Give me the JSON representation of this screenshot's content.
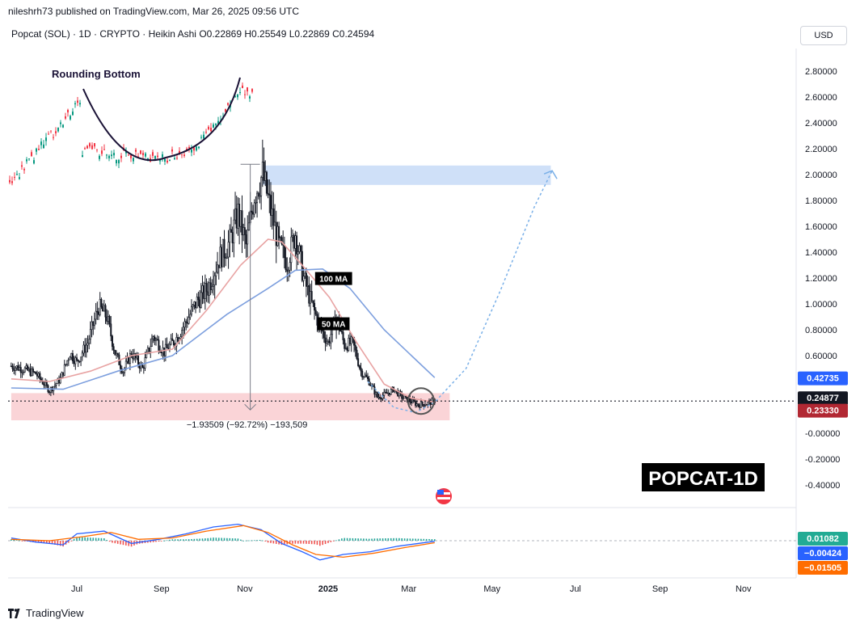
{
  "header": {
    "credit": "nileshrh73 published on TradingView.com, Mar 26, 2025 09:56 UTC",
    "symbol": "Popcat (SOL) · 1D · CRYPTO · Heikin Ashi",
    "ohlc": "O0.22869 H0.25549 L0.22869 C0.24594",
    "currency": "USD"
  },
  "footer": {
    "brand": "TradingView"
  },
  "colors": {
    "up": "#089981",
    "down": "#f23645",
    "candle": "#131722",
    "ma50": "#e8a3a3",
    "ma100": "#7d9fde",
    "zone_blue": "#bbd3f5",
    "zone_red": "#f8c6c9",
    "macd": "#2962ff",
    "signal": "#ff6d00"
  },
  "chart_data": {
    "type": "line",
    "style": "Heikin Ashi candlestick price chart with moving averages and MACD",
    "price_axis": {
      "ticks": [
        "2.80000",
        "2.60000",
        "2.40000",
        "2.20000",
        "2.00000",
        "1.80000",
        "1.60000",
        "1.40000",
        "1.20000",
        "1.00000",
        "0.80000",
        "0.60000",
        "-0.00000",
        "-0.20000",
        "-0.40000"
      ],
      "tick_values": [
        2.8,
        2.6,
        2.4,
        2.2,
        2.0,
        1.8,
        1.6,
        1.4,
        1.2,
        1.0,
        0.8,
        0.6,
        0.0,
        -0.2,
        -0.4
      ],
      "ylim": [
        -0.45,
        2.95
      ]
    },
    "date_axis": {
      "labels": [
        "Jul",
        "Sep",
        "Nov",
        "2025",
        "Mar",
        "May",
        "Jul",
        "Sep",
        "Nov"
      ],
      "label_days": [
        0,
        62,
        123,
        184,
        243,
        304,
        365,
        427,
        488
      ]
    },
    "price_labels": [
      {
        "value": "0.42735",
        "price": 0.42735,
        "color": "#2962ff"
      },
      {
        "value": "0.24877",
        "price": 0.24877,
        "color": "#131722"
      },
      {
        "value": "0.23330",
        "price": 0.2333,
        "color": "#b22833"
      }
    ],
    "close_points": [
      {
        "day": -48,
        "price": 0.52
      },
      {
        "day": -40,
        "price": 0.5
      },
      {
        "day": -30,
        "price": 0.46
      },
      {
        "day": -20,
        "price": 0.33
      },
      {
        "day": -12,
        "price": 0.42
      },
      {
        "day": -5,
        "price": 0.62
      },
      {
        "day": 0,
        "price": 0.55
      },
      {
        "day": 8,
        "price": 0.7
      },
      {
        "day": 16,
        "price": 0.98
      },
      {
        "day": 22,
        "price": 0.9
      },
      {
        "day": 28,
        "price": 0.62
      },
      {
        "day": 34,
        "price": 0.48
      },
      {
        "day": 40,
        "price": 0.62
      },
      {
        "day": 48,
        "price": 0.5
      },
      {
        "day": 56,
        "price": 0.75
      },
      {
        "day": 64,
        "price": 0.63
      },
      {
        "day": 72,
        "price": 0.72
      },
      {
        "day": 80,
        "price": 0.86
      },
      {
        "day": 88,
        "price": 1.02
      },
      {
        "day": 96,
        "price": 1.12
      },
      {
        "day": 104,
        "price": 1.35
      },
      {
        "day": 112,
        "price": 1.48
      },
      {
        "day": 118,
        "price": 1.7
      },
      {
        "day": 124,
        "price": 1.45
      },
      {
        "day": 130,
        "price": 1.85
      },
      {
        "day": 136,
        "price": 2.0
      },
      {
        "day": 142,
        "price": 1.72
      },
      {
        "day": 148,
        "price": 1.45
      },
      {
        "day": 154,
        "price": 1.32
      },
      {
        "day": 160,
        "price": 1.55
      },
      {
        "day": 166,
        "price": 1.2
      },
      {
        "day": 172,
        "price": 1.0
      },
      {
        "day": 178,
        "price": 0.82
      },
      {
        "day": 184,
        "price": 0.7
      },
      {
        "day": 190,
        "price": 0.9
      },
      {
        "day": 196,
        "price": 0.68
      },
      {
        "day": 202,
        "price": 0.7
      },
      {
        "day": 208,
        "price": 0.48
      },
      {
        "day": 214,
        "price": 0.4
      },
      {
        "day": 220,
        "price": 0.28
      },
      {
        "day": 226,
        "price": 0.3
      },
      {
        "day": 232,
        "price": 0.34
      },
      {
        "day": 238,
        "price": 0.28
      },
      {
        "day": 244,
        "price": 0.25
      },
      {
        "day": 250,
        "price": 0.22
      },
      {
        "day": 256,
        "price": 0.23
      },
      {
        "day": 262,
        "price": 0.25
      }
    ],
    "ma50": [
      {
        "day": -48,
        "price": 0.42
      },
      {
        "day": -20,
        "price": 0.4
      },
      {
        "day": 10,
        "price": 0.48
      },
      {
        "day": 40,
        "price": 0.6
      },
      {
        "day": 70,
        "price": 0.65
      },
      {
        "day": 95,
        "price": 0.95
      },
      {
        "day": 120,
        "price": 1.3
      },
      {
        "day": 140,
        "price": 1.5
      },
      {
        "day": 150,
        "price": 1.48
      },
      {
        "day": 165,
        "price": 1.3
      },
      {
        "day": 185,
        "price": 1.05
      },
      {
        "day": 205,
        "price": 0.7
      },
      {
        "day": 225,
        "price": 0.38
      },
      {
        "day": 245,
        "price": 0.27
      },
      {
        "day": 262,
        "price": 0.24
      }
    ],
    "ma100": [
      {
        "day": -48,
        "price": 0.35
      },
      {
        "day": -10,
        "price": 0.34
      },
      {
        "day": 30,
        "price": 0.48
      },
      {
        "day": 70,
        "price": 0.6
      },
      {
        "day": 110,
        "price": 0.92
      },
      {
        "day": 140,
        "price": 1.12
      },
      {
        "day": 160,
        "price": 1.26
      },
      {
        "day": 180,
        "price": 1.27
      },
      {
        "day": 200,
        "price": 1.12
      },
      {
        "day": 225,
        "price": 0.8
      },
      {
        "day": 250,
        "price": 0.55
      },
      {
        "day": 262,
        "price": 0.43
      }
    ],
    "zones": [
      {
        "name": "resistance-zone",
        "day_start": 136,
        "day_end": 347,
        "price_low": 1.92,
        "price_high": 2.07
      },
      {
        "name": "support-zone",
        "day_start": -48,
        "day_end": 273,
        "price_low": 0.1,
        "price_high": 0.31
      }
    ],
    "measure": {
      "label": "−1.93509 (−92.72%) −193,509",
      "day": 127,
      "price_from": 2.08,
      "price_to": 0.18
    },
    "annotations": [
      {
        "text": "100 MA",
        "day": 188,
        "price": 1.19
      },
      {
        "text": "50 MA",
        "day": 188,
        "price": 0.84
      }
    ],
    "projection": [
      {
        "day": 213,
        "price": 0.4
      },
      {
        "day": 232,
        "price": 0.2
      },
      {
        "day": 248,
        "price": 0.16
      },
      {
        "day": 262,
        "price": 0.24
      },
      {
        "day": 285,
        "price": 0.5
      },
      {
        "day": 310,
        "price": 1.1
      },
      {
        "day": 335,
        "price": 1.75
      },
      {
        "day": 348,
        "price": 2.03
      }
    ],
    "inset": {
      "title": "Rounding Bottom"
    },
    "watermark": "POPCAT-1D",
    "macd": {
      "labels": [
        {
          "value": "0.01082",
          "color": "#22ab94"
        },
        {
          "value": "−0.00424",
          "color": "#2962ff"
        },
        {
          "value": "−0.01505",
          "color": "#ff6d00"
        }
      ],
      "macd_line": [
        {
          "day": -48,
          "price": 0.02
        },
        {
          "day": -30,
          "price": -0.01
        },
        {
          "day": -10,
          "price": -0.03
        },
        {
          "day": 0,
          "price": 0.05
        },
        {
          "day": 20,
          "price": 0.07
        },
        {
          "day": 40,
          "price": -0.02
        },
        {
          "day": 60,
          "price": 0.01
        },
        {
          "day": 80,
          "price": 0.05
        },
        {
          "day": 100,
          "price": 0.1
        },
        {
          "day": 118,
          "price": 0.12
        },
        {
          "day": 135,
          "price": 0.08
        },
        {
          "day": 150,
          "price": -0.02
        },
        {
          "day": 165,
          "price": -0.08
        },
        {
          "day": 178,
          "price": -0.14
        },
        {
          "day": 195,
          "price": -0.1
        },
        {
          "day": 215,
          "price": -0.08
        },
        {
          "day": 235,
          "price": -0.04
        },
        {
          "day": 262,
          "price": -0.004
        }
      ],
      "signal_line": [
        {
          "day": -48,
          "price": 0.01
        },
        {
          "day": -20,
          "price": 0.0
        },
        {
          "day": 5,
          "price": 0.03
        },
        {
          "day": 25,
          "price": 0.06
        },
        {
          "day": 45,
          "price": 0.01
        },
        {
          "day": 70,
          "price": 0.02
        },
        {
          "day": 95,
          "price": 0.07
        },
        {
          "day": 122,
          "price": 0.11
        },
        {
          "day": 140,
          "price": 0.06
        },
        {
          "day": 158,
          "price": -0.03
        },
        {
          "day": 175,
          "price": -0.1
        },
        {
          "day": 195,
          "price": -0.12
        },
        {
          "day": 218,
          "price": -0.09
        },
        {
          "day": 240,
          "price": -0.05
        },
        {
          "day": 262,
          "price": -0.015
        }
      ],
      "ylim": [
        -0.18,
        0.15
      ]
    }
  }
}
